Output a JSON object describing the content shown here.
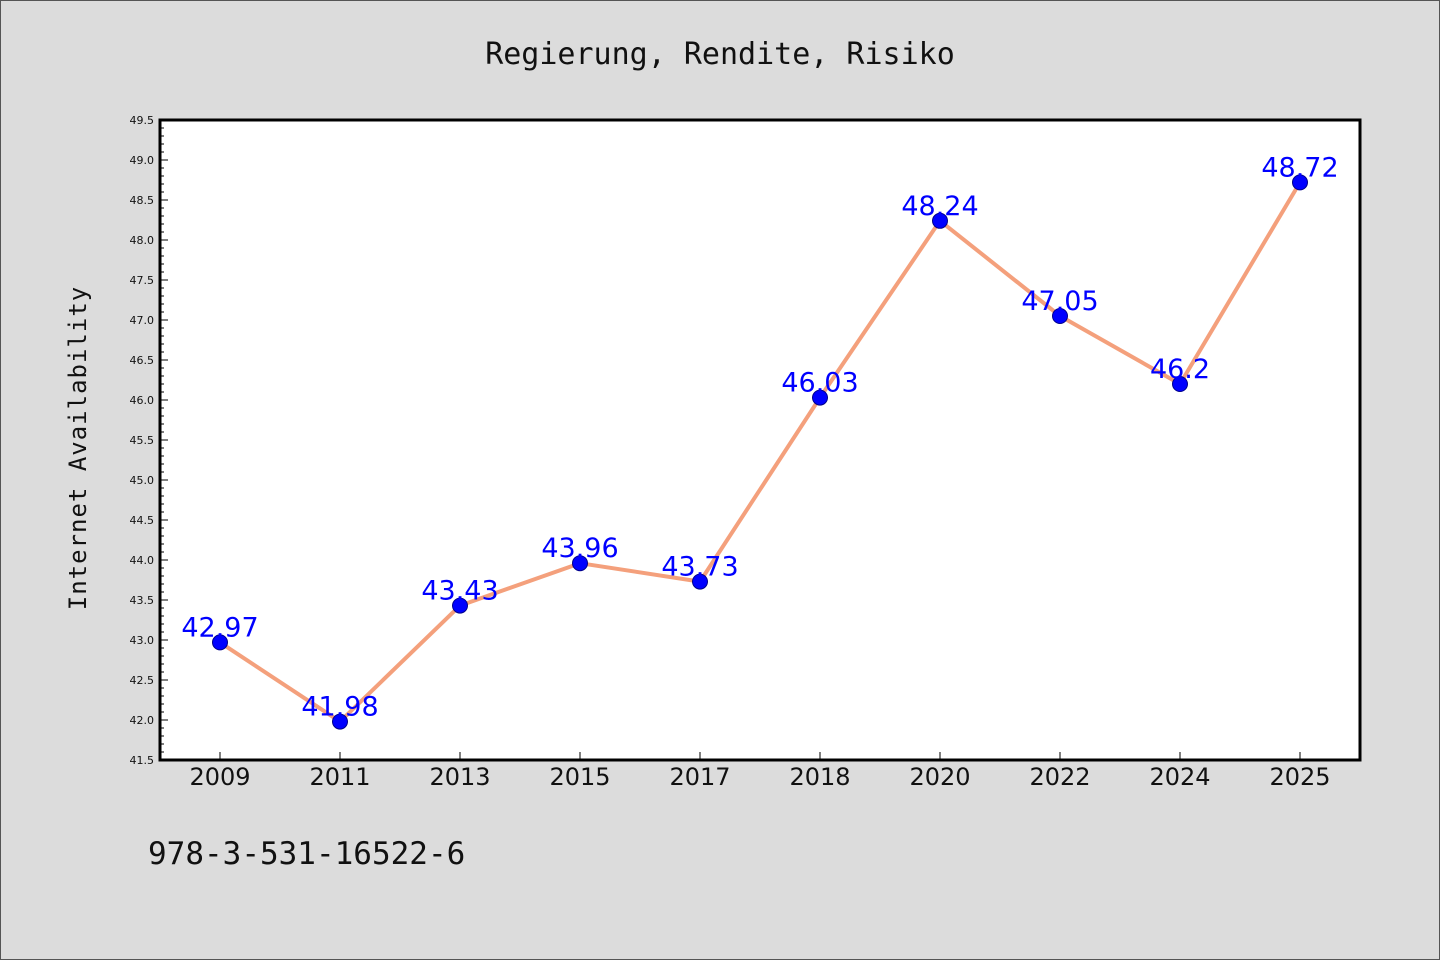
{
  "chart_data": {
    "type": "line",
    "title": "Regierung, Rendite, Risiko",
    "xlabel": "",
    "ylabel": "Internet Availability",
    "categories": [
      "2009",
      "2011",
      "2013",
      "2015",
      "2017",
      "2018",
      "2020",
      "2022",
      "2024",
      "2025"
    ],
    "series": [
      {
        "values": [
          42.97,
          41.98,
          43.43,
          43.96,
          43.73,
          46.03,
          48.24,
          47.05,
          46.2,
          48.72
        ],
        "data_labels": [
          "42.97",
          "41.98",
          "43.43",
          "43.96",
          "43.73",
          "46.03",
          "48.24",
          "47.05",
          "46.2",
          "48.72"
        ],
        "line_color": "#f4a07c",
        "marker_color": "#0000ff"
      }
    ],
    "ylim": [
      41.5,
      49.5
    ],
    "yticks": [
      "41.5",
      "42.0",
      "42.5",
      "43.0",
      "43.5",
      "44.0",
      "44.5",
      "45.0",
      "45.5",
      "46.0",
      "46.5",
      "47.0",
      "47.5",
      "48.0",
      "48.5",
      "49.0",
      "49.5"
    ],
    "grid": false,
    "legend": "none"
  },
  "footer_text": "978-3-531-16522-6",
  "colors": {
    "background": "#dcdcdc",
    "plot_background": "#ffffff",
    "line": "#f4a07c",
    "marker": "#0000ff",
    "data_label": "#0000ff"
  }
}
